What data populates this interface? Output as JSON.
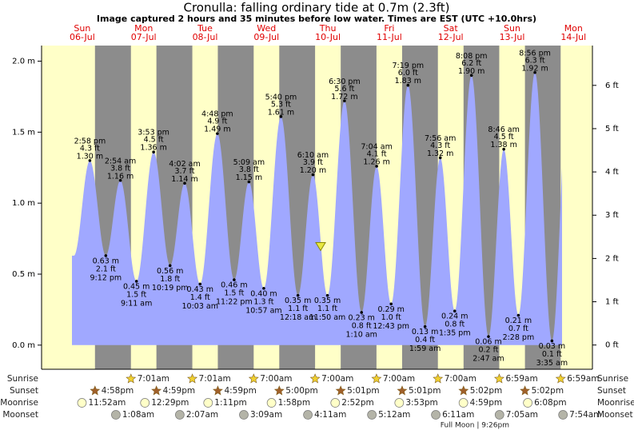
{
  "chart_data": {
    "type": "tide",
    "title": "Cronulla: falling  ordinary tide at 0.7m (2.3ft)",
    "subtitle": "Image captured 2 hours and 35 minutes before low water. Times are EST (UTC +10.0hrs)",
    "current_level": 0.7,
    "ylim": [
      -0.17,
      2.11
    ],
    "yticks": [
      {
        "value": 0,
        "label": "0.0 m"
      },
      {
        "value": 0.5,
        "label": "0.5 m"
      },
      {
        "value": 1,
        "label": "1.0 m"
      },
      {
        "value": 1.5,
        "label": "1.5 m"
      },
      {
        "value": 2,
        "label": "2.0 m"
      }
    ],
    "y2lim": [
      -0.56,
      6.92
    ],
    "y2ticks": [
      {
        "value": 0,
        "label": "0 ft"
      },
      {
        "value": 1,
        "label": "1 ft"
      },
      {
        "value": 2,
        "label": "2 ft"
      },
      {
        "value": 3,
        "label": "3 ft"
      },
      {
        "value": 4,
        "label": "4 ft"
      },
      {
        "value": 5,
        "label": "5 ft"
      },
      {
        "value": 6,
        "label": "6 ft"
      }
    ],
    "row_labels": [
      "Sunrise",
      "Sunset",
      "Moonrise",
      "Moonset"
    ],
    "days": [
      {
        "weekday": "Sun",
        "date": "06-Jul",
        "sunrise": null,
        "sunset": "4:58pm",
        "moonrise": "11:52am",
        "moonset": null,
        "tides": [
          {
            "time": "2:58 pm",
            "ft": 4.3,
            "ft_label": "4.3 ft",
            "m": 1.3,
            "m_label": "1.30 m"
          },
          {
            "time": "9:12 pm",
            "ft": 2.1,
            "ft_label": "2.1 ft",
            "m": 0.63,
            "m_label": "0.63 m"
          }
        ]
      },
      {
        "weekday": "Mon",
        "date": "07-Jul",
        "sunrise": "7:01am",
        "sunset": "4:59pm",
        "moonrise": "12:29pm",
        "moonset": "1:08am",
        "tides": [
          {
            "time": "2:54 am",
            "ft": 3.8,
            "ft_label": "3.8 ft",
            "m": 1.16,
            "m_label": "1.16 m"
          },
          {
            "time": "9:11 am",
            "ft": 1.5,
            "ft_label": "1.5 ft",
            "m": 0.45,
            "m_label": "0.45 m"
          },
          {
            "time": "3:53 pm",
            "ft": 4.5,
            "ft_label": "4.5 ft",
            "m": 1.36,
            "m_label": "1.36 m"
          },
          {
            "time": "10:19 pm",
            "ft": 1.8,
            "ft_label": "1.8 ft",
            "m": 0.56,
            "m_label": "0.56 m"
          }
        ]
      },
      {
        "weekday": "Tue",
        "date": "08-Jul",
        "sunrise": "7:01am",
        "sunset": "4:59pm",
        "moonrise": "1:11pm",
        "moonset": "2:07am",
        "tides": [
          {
            "time": "4:02 am",
            "ft": 3.7,
            "ft_label": "3.7 ft",
            "m": 1.14,
            "m_label": "1.14 m"
          },
          {
            "time": "10:03 am",
            "ft": 1.4,
            "ft_label": "1.4 ft",
            "m": 0.43,
            "m_label": "0.43 m"
          },
          {
            "time": "4:48 pm",
            "ft": 4.9,
            "ft_label": "4.9 ft",
            "m": 1.49,
            "m_label": "1.49 m"
          },
          {
            "time": "11:22 pm",
            "ft": 1.5,
            "ft_label": "1.5 ft",
            "m": 0.46,
            "m_label": "0.46 m"
          }
        ]
      },
      {
        "weekday": "Wed",
        "date": "09-Jul",
        "sunrise": "7:00am",
        "sunset": "5:00pm",
        "moonrise": "1:58pm",
        "moonset": "3:09am",
        "tides": [
          {
            "time": "5:09 am",
            "ft": 3.8,
            "ft_label": "3.8 ft",
            "m": 1.15,
            "m_label": "1.15 m"
          },
          {
            "time": "10:57 am",
            "ft": 1.3,
            "ft_label": "1.3 ft",
            "m": 0.4,
            "m_label": "0.40 m"
          },
          {
            "time": "5:40 pm",
            "ft": 5.3,
            "ft_label": "5.3 ft",
            "m": 1.61,
            "m_label": "1.61 m"
          }
        ]
      },
      {
        "weekday": "Thu",
        "date": "10-Jul",
        "sunrise": "7:00am",
        "sunset": "5:01pm",
        "moonrise": "2:52pm",
        "moonset": "4:11am",
        "tides": [
          {
            "time": "12:18 am",
            "ft": 1.1,
            "ft_label": "1.1 ft",
            "m": 0.35,
            "m_label": "0.35 m"
          },
          {
            "time": "6:10 am",
            "ft": 3.9,
            "ft_label": "3.9 ft",
            "m": 1.2,
            "m_label": "1.20 m"
          },
          {
            "time": "11:50 am",
            "ft": 1.1,
            "ft_label": "1.1 ft",
            "m": 0.35,
            "m_label": "0.35 m"
          },
          {
            "time": "6:30 pm",
            "ft": 5.6,
            "ft_label": "5.6 ft",
            "m": 1.72,
            "m_label": "1.72 m"
          }
        ]
      },
      {
        "weekday": "Fri",
        "date": "11-Jul",
        "sunrise": "7:00am",
        "sunset": "5:01pm",
        "moonrise": "3:53pm",
        "moonset": "5:12am",
        "tides": [
          {
            "time": "1:10 am",
            "ft": 0.8,
            "ft_label": "0.8 ft",
            "m": 0.23,
            "m_label": "0.23 m"
          },
          {
            "time": "7:04 am",
            "ft": 4.1,
            "ft_label": "4.1 ft",
            "m": 1.26,
            "m_label": "1.26 m"
          },
          {
            "time": "12:43 pm",
            "ft": 1.0,
            "ft_label": "1.0 ft",
            "m": 0.29,
            "m_label": "0.29 m"
          },
          {
            "time": "7:19 pm",
            "ft": 6.0,
            "ft_label": "6.0 ft",
            "m": 1.83,
            "m_label": "1.83 m"
          }
        ]
      },
      {
        "weekday": "Sat",
        "date": "12-Jul",
        "sunrise": "7:00am",
        "sunset": "5:02pm",
        "moonrise": "4:59pm",
        "moonset": "6:11am",
        "full_moon": "Full Moon | 9:26pm",
        "tides": [
          {
            "time": "1:59 am",
            "ft": 0.4,
            "ft_label": "0.4 ft",
            "m": 0.13,
            "m_label": "0.13 m"
          },
          {
            "time": "7:56 am",
            "ft": 4.3,
            "ft_label": "4.3 ft",
            "m": 1.32,
            "m_label": "1.32 m"
          },
          {
            "time": "1:35 pm",
            "ft": 0.8,
            "ft_label": "0.8 ft",
            "m": 0.24,
            "m_label": "0.24 m"
          },
          {
            "time": "8:08 pm",
            "ft": 6.2,
            "ft_label": "6.2 ft",
            "m": 1.9,
            "m_label": "1.90 m"
          }
        ]
      },
      {
        "weekday": "Sun",
        "date": "13-Jul",
        "sunrise": "6:59am",
        "sunset": "5:02pm",
        "moonrise": "6:08pm",
        "moonset": "7:05am",
        "tides": [
          {
            "time": "2:47 am",
            "ft": 0.2,
            "ft_label": "0.2 ft",
            "m": 0.06,
            "m_label": "0.06 m"
          },
          {
            "time": "8:46 am",
            "ft": 4.5,
            "ft_label": "4.5 ft",
            "m": 1.38,
            "m_label": "1.38 m"
          },
          {
            "time": "2:28 pm",
            "ft": 0.7,
            "ft_label": "0.7 ft",
            "m": 0.21,
            "m_label": "0.21 m"
          },
          {
            "time": "8:56 pm",
            "ft": 6.3,
            "ft_label": "6.3 ft",
            "m": 1.92,
            "m_label": "1.92 m"
          }
        ]
      },
      {
        "weekday": "Mon",
        "date": "14-Jul",
        "sunrise": "6:59am",
        "sunset": null,
        "moonrise": null,
        "moonset": "7:54am",
        "tides": [
          {
            "time": "3:35 am",
            "ft": 0.1,
            "ft_label": "0.1 ft",
            "m": 0.03,
            "m_label": "0.03 m"
          }
        ]
      }
    ]
  }
}
